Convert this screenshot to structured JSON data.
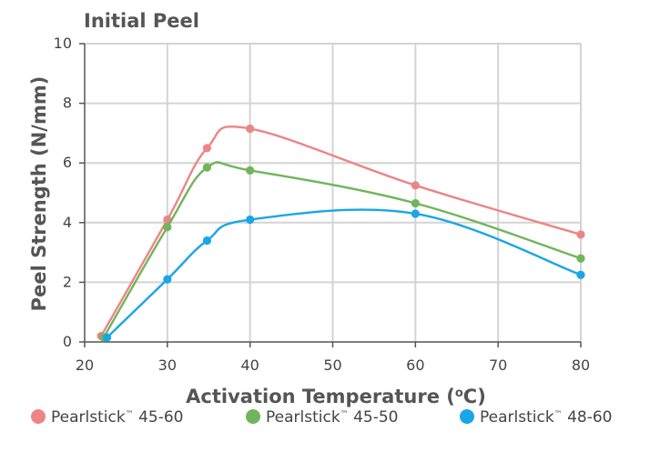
{
  "chart_data": {
    "type": "line",
    "title": "Initial Peel",
    "xlabel_main": "Activation Temperature (",
    "xlabel_sup": "o",
    "xlabel_end": "C)",
    "ylabel": "Peel Strength (N/mm)",
    "xlim": [
      20,
      80
    ],
    "ylim": [
      0,
      10
    ],
    "xticks": [
      "20",
      "30",
      "40",
      "50",
      "60",
      "70",
      "80"
    ],
    "yticks": [
      "0",
      "2",
      "4",
      "6",
      "8",
      "10"
    ],
    "grid": true,
    "legend_position": "bottom",
    "series": [
      {
        "name_main": "Pearlstick",
        "name_tm": "™",
        "name_end": " 45-60",
        "color": "#ec8585",
        "points": [
          [
            22,
            0.2
          ],
          [
            30,
            4.1
          ],
          [
            34.8,
            6.5
          ],
          [
            40,
            7.15
          ],
          [
            60,
            5.25
          ],
          [
            80,
            3.6
          ]
        ]
      },
      {
        "name_main": "Pearlstick",
        "name_tm": "™",
        "name_end": " 45-50",
        "color": "#70b55a",
        "points": [
          [
            22.3,
            0.15
          ],
          [
            30,
            3.85
          ],
          [
            34.8,
            5.85
          ],
          [
            40,
            5.75
          ],
          [
            60,
            4.65
          ],
          [
            80,
            2.8
          ]
        ]
      },
      {
        "name_main": "Pearlstick",
        "name_tm": "™",
        "name_end": " 48-60",
        "color": "#1aa6e6",
        "points": [
          [
            22.7,
            0.15
          ],
          [
            30,
            2.1
          ],
          [
            34.8,
            3.4
          ],
          [
            40,
            4.1
          ],
          [
            60,
            4.3
          ],
          [
            80,
            2.25
          ]
        ]
      }
    ]
  }
}
